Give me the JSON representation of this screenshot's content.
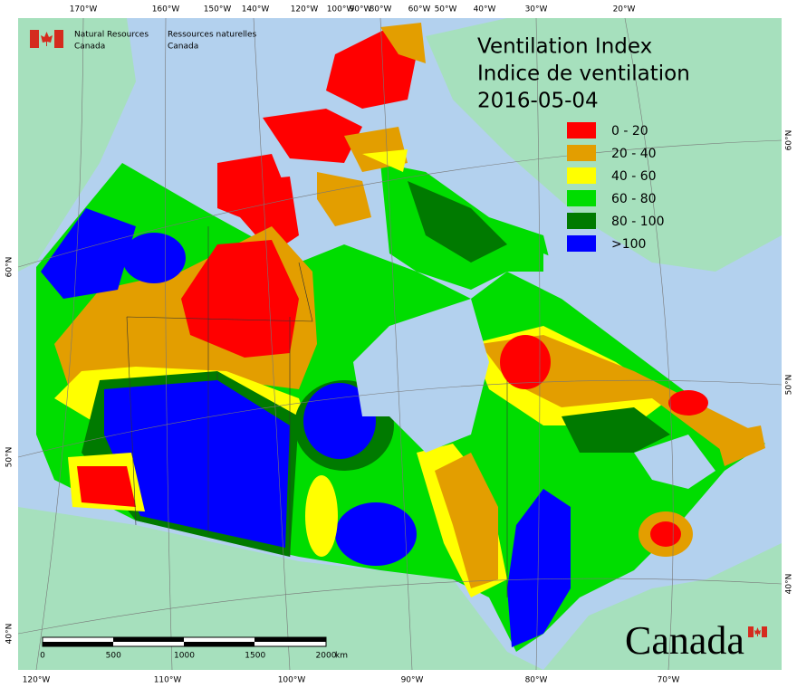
{
  "agency": {
    "en": [
      "Natural Resources",
      "Canada"
    ],
    "fr": [
      "Ressources naturelles",
      "Canada"
    ]
  },
  "title": [
    "Ventilation Index",
    "Indice de ventilation"
  ],
  "date": "2016-05-04",
  "legend": {
    "items": [
      {
        "label": "0 - 20",
        "color": "#ff0000"
      },
      {
        "label": "20 - 40",
        "color": "#e39e00"
      },
      {
        "label": "40 - 60",
        "color": "#ffff00"
      },
      {
        "label": "60 - 80",
        "color": "#00dd00"
      },
      {
        "label": "80 - 100",
        "color": "#007a00"
      },
      {
        "label": ">100",
        "color": "#0000ff"
      }
    ]
  },
  "graticule": {
    "top": [
      "170°W",
      "160°W",
      "150°W",
      "140°W",
      "120°W",
      "100°W",
      "90°W",
      "80°W",
      "60°W",
      "50°W",
      "40°W",
      "30°W",
      "20°W"
    ],
    "bottom": [
      "120°W",
      "110°W",
      "100°W",
      "90°W",
      "80°W",
      "70°W"
    ],
    "left": [
      "60°N",
      "50°N",
      "40°N"
    ],
    "right": [
      "60°N",
      "50°N",
      "40°N"
    ]
  },
  "scale_bar": {
    "labels": [
      "0",
      "500",
      "1000",
      "1500",
      "2000"
    ],
    "unit": "km"
  },
  "wordmark": "Canada"
}
